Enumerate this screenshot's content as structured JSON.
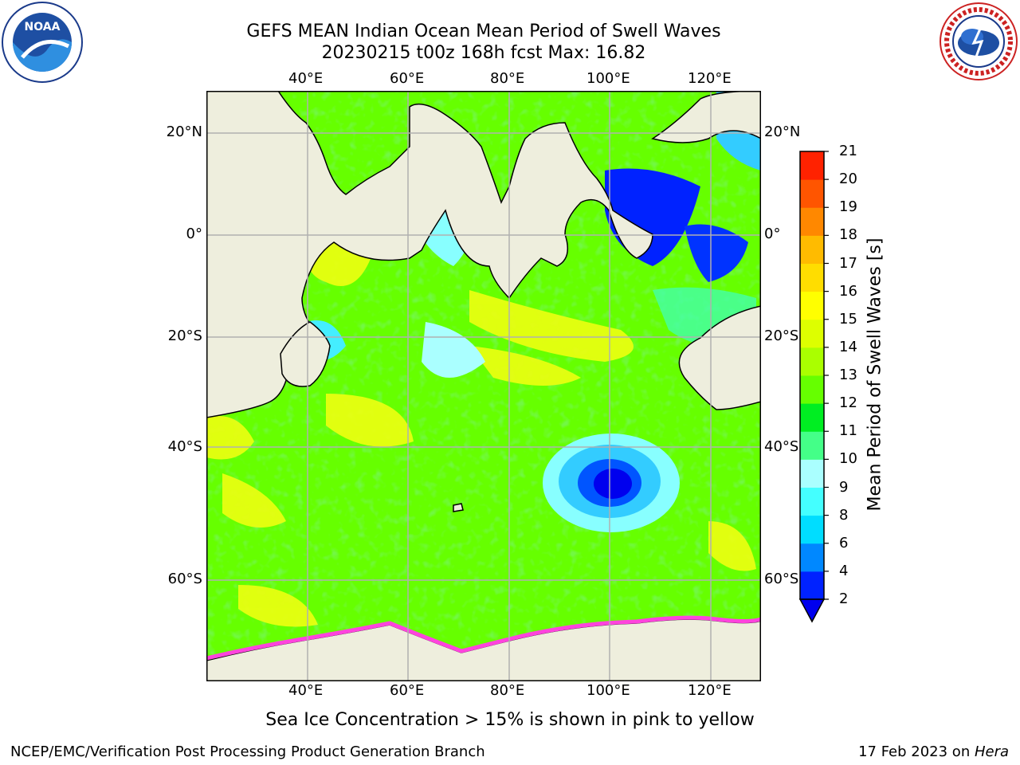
{
  "title": {
    "line1": "GEFS MEAN Indian Ocean Mean Period of Swell Waves",
    "line2": "20230215 t00z 168h fcst   Max: 16.82"
  },
  "logos": {
    "left": {
      "icon": "noaa-logo",
      "text": "NOAA",
      "ring_text": "NATIONAL OCEANIC AND ATMOSPHERIC ADMINISTRATION · U.S. DEPARTMENT OF COMMERCE"
    },
    "right": {
      "icon": "nws-logo",
      "ring_text": "NATIONAL WEATHER SERVICE"
    }
  },
  "map": {
    "lon_ticks": [
      "40°E",
      "60°E",
      "80°E",
      "100°E",
      "120°E"
    ],
    "lat_ticks": [
      "20°N",
      "0°",
      "20°S",
      "40°S",
      "60°S"
    ],
    "grid": true,
    "colors": {
      "land": "#eeeedd",
      "ocean_base": "#66ff00",
      "gridline": "#b0b0b0",
      "sea_ice": "#ff44dd"
    }
  },
  "colorbar": {
    "label": "Mean Period of Swell Waves [s]",
    "ticks": [
      "2",
      "4",
      "6",
      "8",
      "9",
      "10",
      "11",
      "12",
      "13",
      "14",
      "15",
      "16",
      "17",
      "18",
      "19",
      "20",
      "21"
    ],
    "colors": [
      "#0022ff",
      "#0088ff",
      "#00ddff",
      "#44ffff",
      "#aaffff",
      "#44ff88",
      "#00ee22",
      "#66ff00",
      "#aaff00",
      "#ddff00",
      "#ffff00",
      "#ffdd00",
      "#ffbb00",
      "#ff8800",
      "#ff5500",
      "#ff2200",
      "#ff0000"
    ],
    "extend": "min",
    "extend_color": "#0000ee"
  },
  "note": "Sea Ice Concentration > 15% is shown in pink to yellow",
  "footer": {
    "left": "NCEP/EMC/Verification Post Processing Product Generation Branch",
    "right_date": "17 Feb 2023 on ",
    "right_host": "Hera"
  }
}
